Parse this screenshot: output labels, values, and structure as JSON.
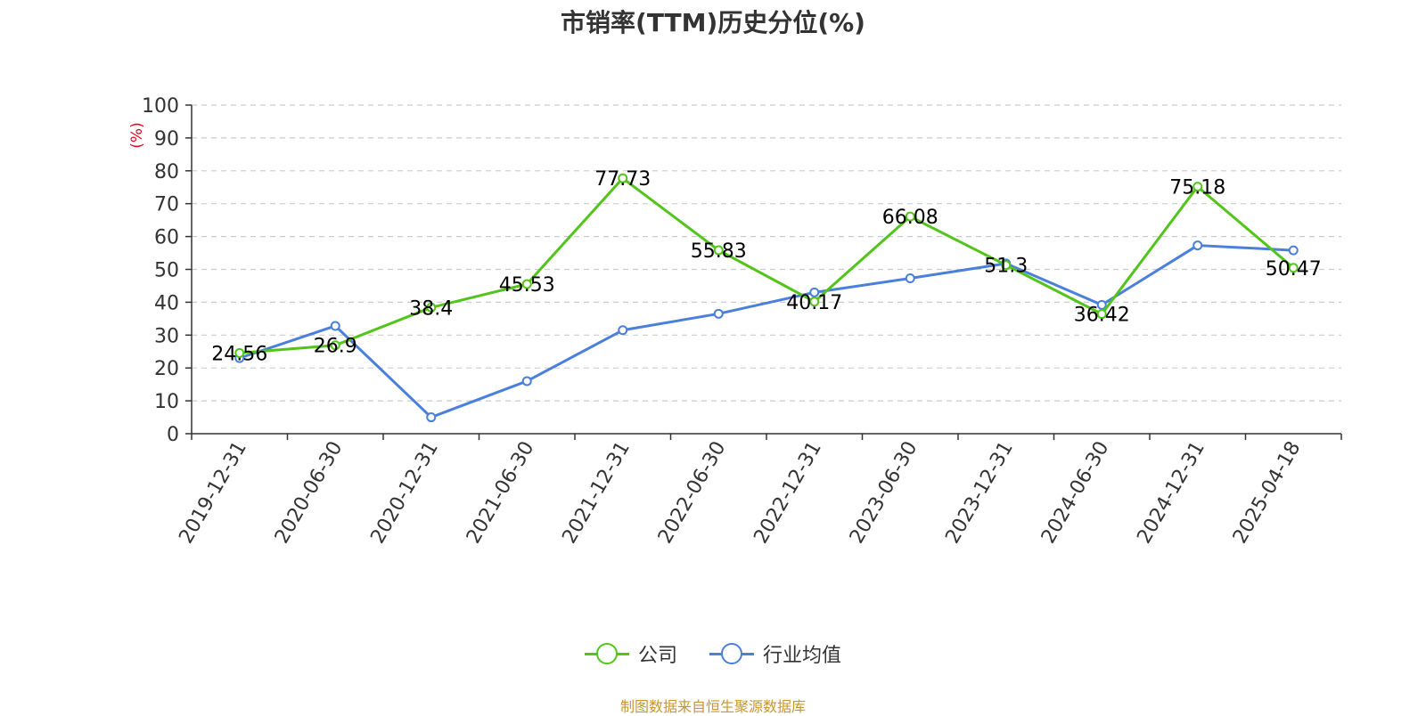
{
  "title": "市销率(TTM)历史分位(%)",
  "footer": "制图数据来自恒生聚源数据库",
  "chart_data": {
    "type": "line",
    "title": "市销率(TTM)历史分位(%)",
    "ylabel": "(%)",
    "xlabel": "",
    "ylim": [
      0,
      100
    ],
    "yticks": [
      0,
      10,
      20,
      30,
      40,
      50,
      60,
      70,
      80,
      90,
      100
    ],
    "grid": true,
    "legend_position": "bottom",
    "categories": [
      "2019-12-31",
      "2020-06-30",
      "2020-12-31",
      "2021-06-30",
      "2021-12-31",
      "2022-06-30",
      "2022-12-31",
      "2023-06-30",
      "2023-12-31",
      "2024-06-30",
      "2024-12-31",
      "2025-04-18"
    ],
    "series": [
      {
        "name": "公司",
        "color": "#52c41a",
        "values": [
          24.56,
          26.9,
          38.4,
          45.53,
          77.73,
          55.83,
          40.17,
          66.08,
          51.3,
          36.42,
          75.18,
          50.47
        ],
        "labels": [
          "24.56",
          "26.9",
          "38.4",
          "45.53",
          "77.73",
          "55.83",
          "40.17",
          "66.08",
          "51.3",
          "36.42",
          "75.18",
          "50.47"
        ]
      },
      {
        "name": "行业均值",
        "color": "#4a7fdc",
        "values": [
          23,
          32.8,
          5,
          16,
          31.5,
          36.5,
          43,
          47.3,
          51.8,
          39.2,
          57.3,
          55.8
        ]
      }
    ]
  }
}
